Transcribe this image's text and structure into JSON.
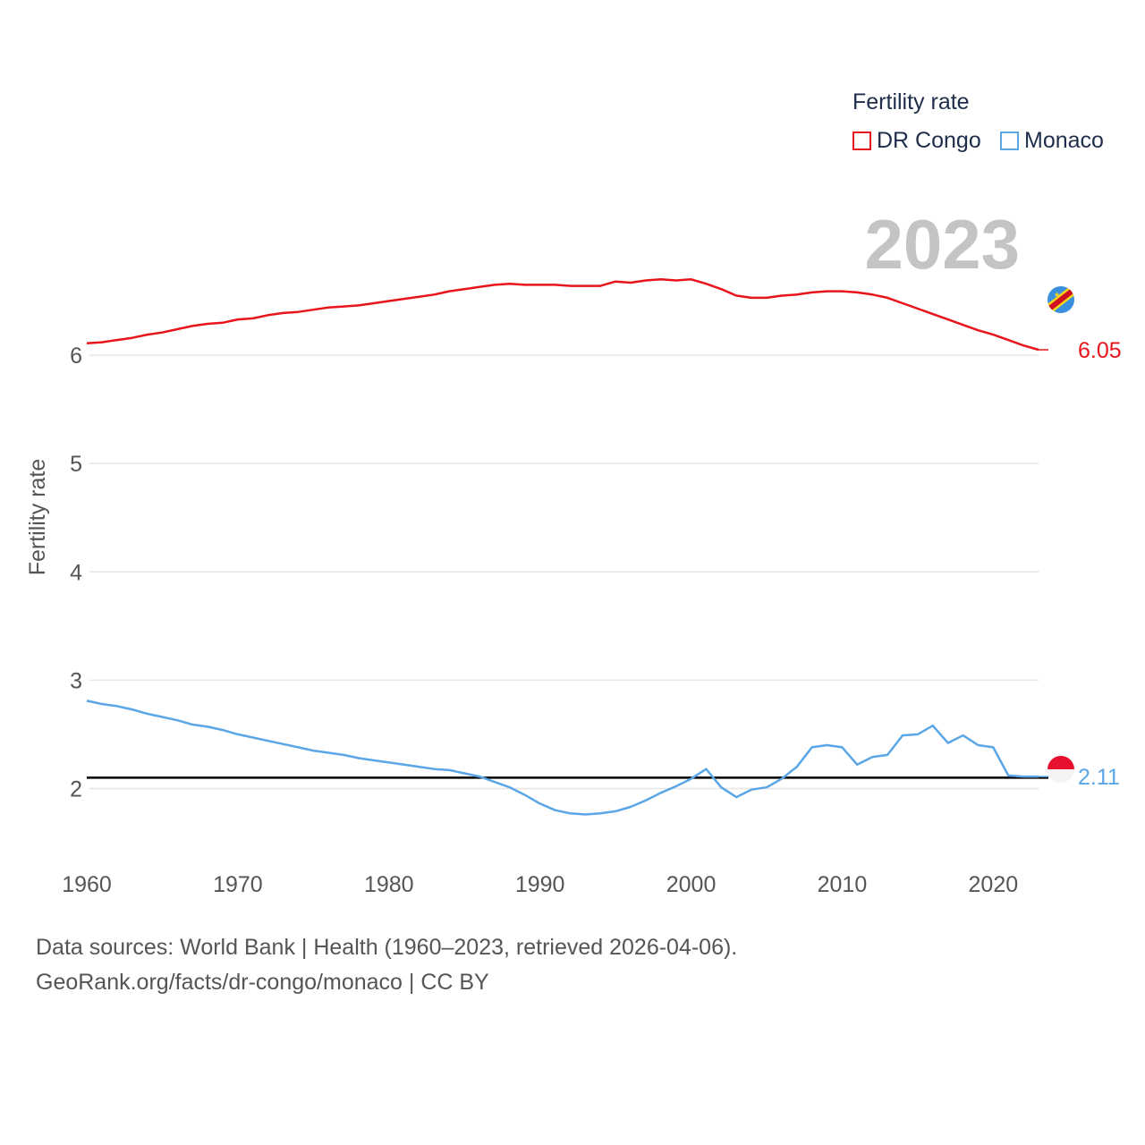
{
  "legend": {
    "title": "Fertility rate",
    "items": [
      {
        "label": "DR Congo",
        "color": "#e8141b"
      },
      {
        "label": "Monaco",
        "color": "#5aa6e6"
      }
    ]
  },
  "year_watermark": "2023",
  "source": {
    "line1": "Data sources: World Bank | Health (1960–2023, retrieved 2026-04-06).",
    "line2": "GeoRank.org/facts/dr-congo/monaco | CC BY"
  },
  "chart_data": {
    "type": "line",
    "title": "Fertility rate",
    "xlabel": "",
    "ylabel": "Fertility rate",
    "xlim": [
      1960,
      2023
    ],
    "ylim": [
      1.5,
      7.0
    ],
    "x_ticks": [
      1960,
      1970,
      1980,
      1990,
      2000,
      2010,
      2020
    ],
    "y_ticks": [
      2,
      3,
      4,
      5,
      6
    ],
    "reference_line": 2.1,
    "grid": "horizontal",
    "x": [
      1960,
      1961,
      1962,
      1963,
      1964,
      1965,
      1966,
      1967,
      1968,
      1969,
      1970,
      1971,
      1972,
      1973,
      1974,
      1975,
      1976,
      1977,
      1978,
      1979,
      1980,
      1981,
      1982,
      1983,
      1984,
      1985,
      1986,
      1987,
      1988,
      1989,
      1990,
      1991,
      1992,
      1993,
      1994,
      1995,
      1996,
      1997,
      1998,
      1999,
      2000,
      2001,
      2002,
      2003,
      2004,
      2005,
      2006,
      2007,
      2008,
      2009,
      2010,
      2011,
      2012,
      2013,
      2014,
      2015,
      2016,
      2017,
      2018,
      2019,
      2020,
      2021,
      2022,
      2023
    ],
    "series": [
      {
        "name": "DR Congo",
        "color": "#e8141b",
        "end_label": "6.05",
        "values": [
          6.11,
          6.12,
          6.14,
          6.16,
          6.19,
          6.21,
          6.24,
          6.27,
          6.29,
          6.3,
          6.33,
          6.34,
          6.37,
          6.39,
          6.4,
          6.42,
          6.44,
          6.45,
          6.46,
          6.48,
          6.5,
          6.52,
          6.54,
          6.56,
          6.59,
          6.61,
          6.63,
          6.65,
          6.66,
          6.65,
          6.65,
          6.65,
          6.64,
          6.64,
          6.64,
          6.68,
          6.67,
          6.69,
          6.7,
          6.69,
          6.7,
          6.66,
          6.61,
          6.55,
          6.53,
          6.53,
          6.55,
          6.56,
          6.58,
          6.59,
          6.59,
          6.58,
          6.56,
          6.53,
          6.48,
          6.43,
          6.38,
          6.33,
          6.28,
          6.23,
          6.19,
          6.14,
          6.09,
          6.05
        ]
      },
      {
        "name": "Monaco",
        "color": "#5aa6e6",
        "end_label": "2.11",
        "values": [
          2.81,
          2.78,
          2.76,
          2.73,
          2.69,
          2.66,
          2.63,
          2.59,
          2.57,
          2.54,
          2.5,
          2.47,
          2.44,
          2.41,
          2.38,
          2.35,
          2.33,
          2.31,
          2.28,
          2.26,
          2.24,
          2.22,
          2.2,
          2.18,
          2.17,
          2.14,
          2.11,
          2.06,
          2.01,
          1.94,
          1.86,
          1.8,
          1.77,
          1.76,
          1.77,
          1.79,
          1.83,
          1.89,
          1.96,
          2.02,
          2.09,
          2.18,
          2.01,
          1.92,
          1.99,
          2.01,
          2.09,
          2.2,
          2.38,
          2.4,
          2.38,
          2.22,
          2.29,
          2.31,
          2.49,
          2.5,
          2.58,
          2.42,
          2.49,
          2.4,
          2.38,
          2.12,
          2.11,
          2.11
        ]
      }
    ]
  }
}
